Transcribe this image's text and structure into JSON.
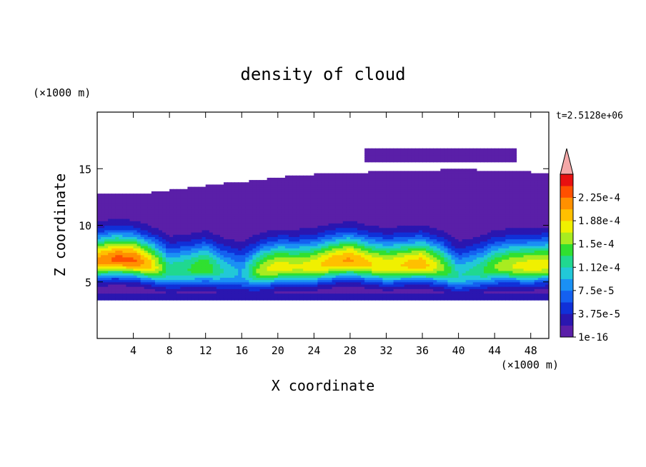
{
  "chart_data": {
    "type": "heatmap",
    "title": "density of cloud",
    "xlabel": "X coordinate",
    "ylabel": "Z coordinate",
    "x_unit": "(×1000 m)",
    "y_unit": "(×1000 m)",
    "time_label": "t=2.5128e+06",
    "xlim": [
      0,
      50
    ],
    "ylim": [
      0,
      20
    ],
    "x_ticks": [
      4,
      8,
      12,
      16,
      20,
      24,
      28,
      32,
      36,
      40,
      44,
      48
    ],
    "y_ticks": [
      5,
      10,
      15
    ],
    "colorbar": {
      "levels": [
        1e-16,
        1.875e-05,
        3.75e-05,
        5.625e-05,
        7.5e-05,
        9.375e-05,
        0.0001125,
        0.00013125,
        0.00015,
        0.00016875,
        0.0001875,
        0.00020625,
        0.000225,
        0.00024375
      ],
      "labels": [
        "1e-16",
        "3.75e-5",
        "7.5e-5",
        "1.12e-4",
        "1.5e-4",
        "1.88e-4",
        "2.25e-4"
      ],
      "colors": [
        "#5a1fa8",
        "#2a16b0",
        "#1030d8",
        "#1460f0",
        "#1a90f4",
        "#22c8d8",
        "#20d890",
        "#30e030",
        "#a8ec20",
        "#f0f000",
        "#ffc000",
        "#ff9000",
        "#ff5000",
        "#e81010"
      ],
      "over_color": "#f4a8a8"
    },
    "band_profile": {
      "x": [
        0,
        2,
        4,
        6,
        8,
        10,
        12,
        14,
        16,
        18,
        20,
        22,
        24,
        26,
        28,
        30,
        32,
        34,
        36,
        38,
        40,
        42,
        44,
        46,
        48,
        50
      ],
      "peak_z": [
        6.8,
        7.0,
        6.9,
        6.5,
        6.0,
        6.1,
        6.3,
        5.9,
        5.7,
        6.0,
        6.3,
        6.3,
        6.4,
        6.7,
        6.9,
        6.6,
        6.4,
        6.5,
        6.6,
        6.3,
        5.6,
        5.9,
        6.3,
        6.4,
        6.4,
        6.5
      ],
      "peak_value": [
        0.00021,
        0.00023,
        0.00023,
        0.00019,
        0.00012,
        0.00013,
        0.00015,
        0.00011,
        9e-05,
        0.00016,
        0.00018,
        0.00017,
        0.00018,
        0.0002,
        0.00021,
        0.00019,
        0.00018,
        0.00019,
        0.0002,
        0.00016,
        0.00011,
        0.00012,
        0.00015,
        0.00017,
        0.00018,
        0.00018
      ]
    },
    "cloud_base_z": 3.5,
    "cloud_top_z": [
      12.7,
      12.8,
      12.8,
      12.9,
      13.1,
      13.3,
      13.5,
      13.7,
      13.8,
      14.0,
      14.2,
      14.4,
      14.5,
      14.6,
      14.6,
      14.7,
      14.8,
      14.8,
      14.8,
      14.9,
      14.9,
      14.9,
      14.8,
      14.8,
      14.7,
      14.6
    ],
    "upper_layer": {
      "x_start": 29.5,
      "x_end": 46.5,
      "top_z": 16.8,
      "base_z": 15.5
    }
  }
}
